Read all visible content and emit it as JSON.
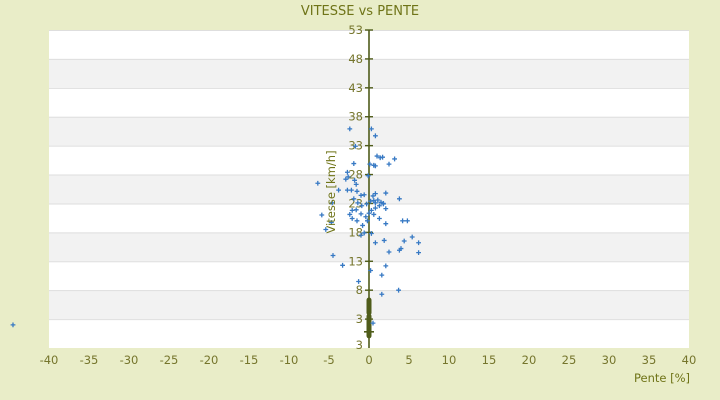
{
  "chart_data": {
    "type": "scatter",
    "title": "VITESSE vs PENTE",
    "xlabel": "Pente [%]",
    "ylabel": "Vitesse [km/h]",
    "xlim": [
      -40,
      40
    ],
    "ylim": [
      -2,
      53
    ],
    "x_ticks": [
      -40,
      -35,
      -30,
      -25,
      -20,
      -15,
      -10,
      -5,
      0,
      5,
      10,
      15,
      20,
      25,
      30,
      35,
      40
    ],
    "y_ticks": [
      53,
      48,
      43,
      38,
      33,
      28,
      23,
      18,
      13,
      8,
      3
    ],
    "y_axis_bottom_extra_label": "3",
    "legend": "none",
    "grid": "horizontal bands, alternating white/gray, gridline at each y tick",
    "marker_style": "plus",
    "colors": {
      "page_background": "#e9edc8",
      "band_white": "#ffffff",
      "band_gray": "#f2f2f2",
      "gridline": "#dedede",
      "axis_olive": "#4f5c1a",
      "label_olive": "#6f7418",
      "tick_label_olive": "#75752c",
      "marker_blue": "#3779c4"
    },
    "gray_band_ranges": [
      [
        3,
        8
      ],
      [
        13,
        18
      ],
      [
        23,
        28
      ],
      [
        33,
        38
      ],
      [
        43,
        48
      ]
    ],
    "zero_axis_overplot_bar": {
      "comment": "dense overlapping points drawn as thick olive bar on the x=0 axis",
      "segments_y": [
        [
          0.1,
          3.5
        ],
        [
          4.1,
          6.3
        ]
      ],
      "dash_y": 0.8
    },
    "points": [
      [
        -2.4,
        35.9
      ],
      [
        0.3,
        35.9
      ],
      [
        0.8,
        34.7
      ],
      [
        -1.7,
        32.9
      ],
      [
        1.0,
        31.2
      ],
      [
        1.4,
        30.9
      ],
      [
        1.7,
        31.0
      ],
      [
        3.2,
        30.7
      ],
      [
        -1.9,
        29.9
      ],
      [
        0.1,
        29.8
      ],
      [
        0.6,
        29.6
      ],
      [
        0.8,
        29.5
      ],
      [
        2.5,
        29.8
      ],
      [
        -6.4,
        26.5
      ],
      [
        -2.7,
        28.4
      ],
      [
        -2.6,
        27.6
      ],
      [
        -2.9,
        27.2
      ],
      [
        -0.1,
        27.8
      ],
      [
        -1.8,
        27.0
      ],
      [
        -1.6,
        26.3
      ],
      [
        -3.8,
        25.3
      ],
      [
        -2.7,
        25.3
      ],
      [
        -2.2,
        25.3
      ],
      [
        -1.5,
        25.1
      ],
      [
        -1.0,
        24.4
      ],
      [
        -0.6,
        24.5
      ],
      [
        0.8,
        24.7
      ],
      [
        0.5,
        24.3
      ],
      [
        2.1,
        24.8
      ],
      [
        -4.6,
        23.1
      ],
      [
        -1.9,
        23.8
      ],
      [
        3.8,
        23.8
      ],
      [
        1.5,
        23.2
      ],
      [
        1.8,
        23.0
      ],
      [
        0.8,
        23.1
      ],
      [
        0.2,
        23.4
      ],
      [
        -0.9,
        22.6
      ],
      [
        -1.4,
        23.1
      ],
      [
        0.6,
        23.5
      ],
      [
        1.1,
        23.6
      ],
      [
        2.1,
        22.1
      ],
      [
        -0.3,
        22.9
      ],
      [
        -5.9,
        21.0
      ],
      [
        -4.7,
        19.7
      ],
      [
        -2.4,
        21.1
      ],
      [
        -2.1,
        20.4
      ],
      [
        -1.6,
        21.9
      ],
      [
        -1.5,
        20.0
      ],
      [
        -1.0,
        21.2
      ],
      [
        -0.8,
        19.2
      ],
      [
        -0.4,
        20.7
      ],
      [
        -0.2,
        20.0
      ],
      [
        0.0,
        21.3
      ],
      [
        0.3,
        21.8
      ],
      [
        0.6,
        21.1
      ],
      [
        0.8,
        22.2
      ],
      [
        1.3,
        22.6
      ],
      [
        1.8,
        22.9
      ],
      [
        1.3,
        20.4
      ],
      [
        2.1,
        19.5
      ],
      [
        4.2,
        20.0
      ],
      [
        4.8,
        20.0
      ],
      [
        -2.1,
        21.8
      ],
      [
        -5.4,
        18.5
      ],
      [
        0.3,
        17.8
      ],
      [
        -0.6,
        17.9
      ],
      [
        -1.0,
        17.5
      ],
      [
        0.8,
        16.2
      ],
      [
        1.9,
        16.6
      ],
      [
        4.4,
        16.5
      ],
      [
        5.4,
        17.2
      ],
      [
        6.2,
        16.2
      ],
      [
        2.5,
        14.6
      ],
      [
        3.8,
        14.9
      ],
      [
        4.0,
        15.2
      ],
      [
        6.2,
        14.5
      ],
      [
        -4.5,
        14.0
      ],
      [
        -3.3,
        12.3
      ],
      [
        2.1,
        12.2
      ],
      [
        1.6,
        10.6
      ],
      [
        0.2,
        11.4
      ],
      [
        -1.3,
        9.5
      ],
      [
        1.6,
        7.3
      ],
      [
        3.7,
        8.0
      ],
      [
        0.5,
        2.3
      ],
      [
        -44.5,
        2.0
      ]
    ]
  }
}
